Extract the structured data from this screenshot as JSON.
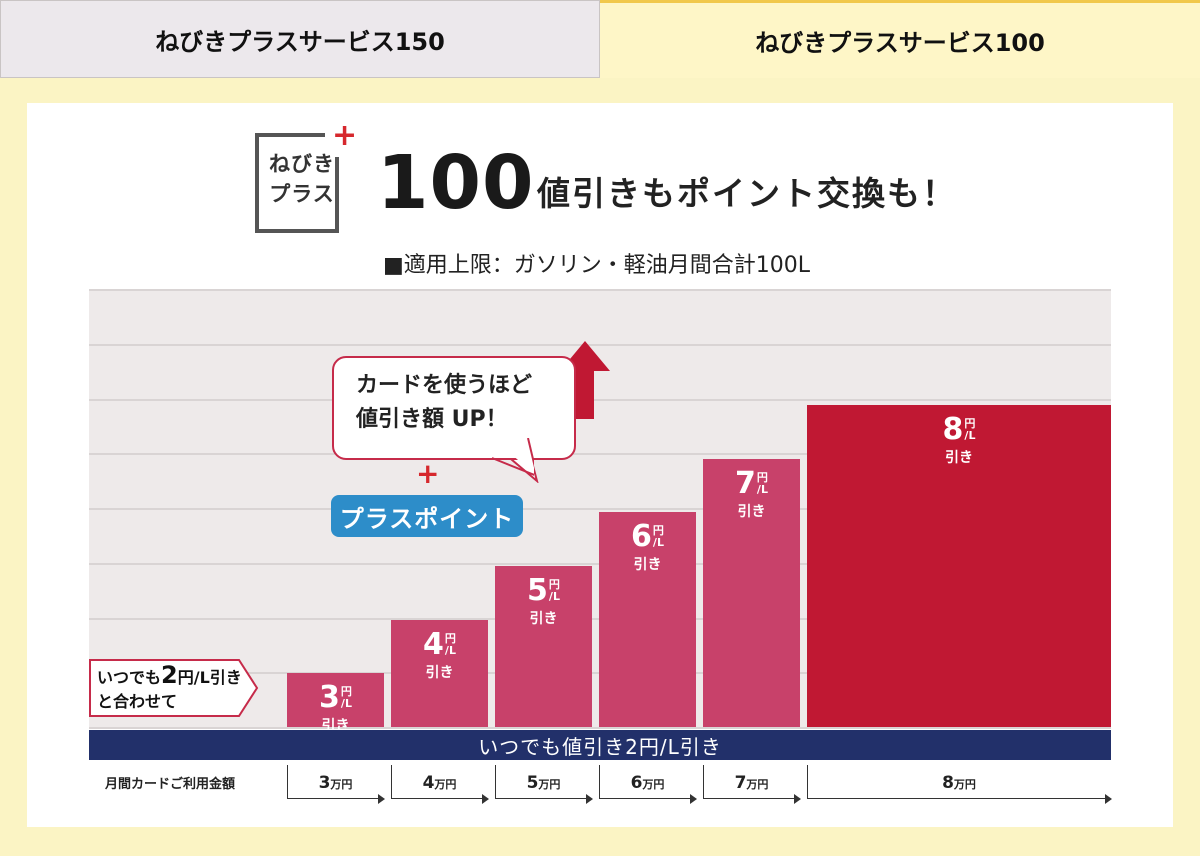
{
  "tabs": [
    {
      "label": "ねびきプラスサービス150",
      "active": false
    },
    {
      "label": "ねびきプラスサービス100",
      "active": true
    }
  ],
  "header": {
    "logo_line1": "ねびき",
    "logo_line2": "プラス",
    "logo_plus": "+",
    "number": "100",
    "tagline": "値引きもポイント交換も！",
    "limit_note": "■適用上限：ガソリン・軽油月間合計100L"
  },
  "callouts": {
    "base_line1_pre": "いつでも",
    "base_value": "2",
    "base_line1_post": "円/L引き",
    "base_line2": "と合わせて",
    "speech_line1": "カードを使うほど",
    "speech_line2": "値引き額 UP！",
    "plus_mark": "+",
    "plus_point": "プラスポイント"
  },
  "colors": {
    "bar": "#c8416a",
    "bar_top": "#c01833",
    "always_bar": "#22306a",
    "plus_point": "#2d8dc9",
    "tab_active_border": "#f1c84b"
  },
  "chart_data": {
    "type": "bar",
    "categories": [
      "3万円",
      "4万円",
      "5万円",
      "6万円",
      "7万円",
      "8万円"
    ],
    "xlabel": "月間カードご利用金額",
    "ylabel": "",
    "series": [
      {
        "name": "",
        "values": [
          3,
          4,
          5,
          6,
          7,
          8
        ]
      }
    ],
    "value_unit": "円/L",
    "value_suffix": "引き",
    "unit_yen": "円",
    "unit_l": "L",
    "ylim": [
      0,
      8
    ],
    "grid": true,
    "baseline_label": "いつでも値引き2円/L引き",
    "baseline_value": 2
  }
}
